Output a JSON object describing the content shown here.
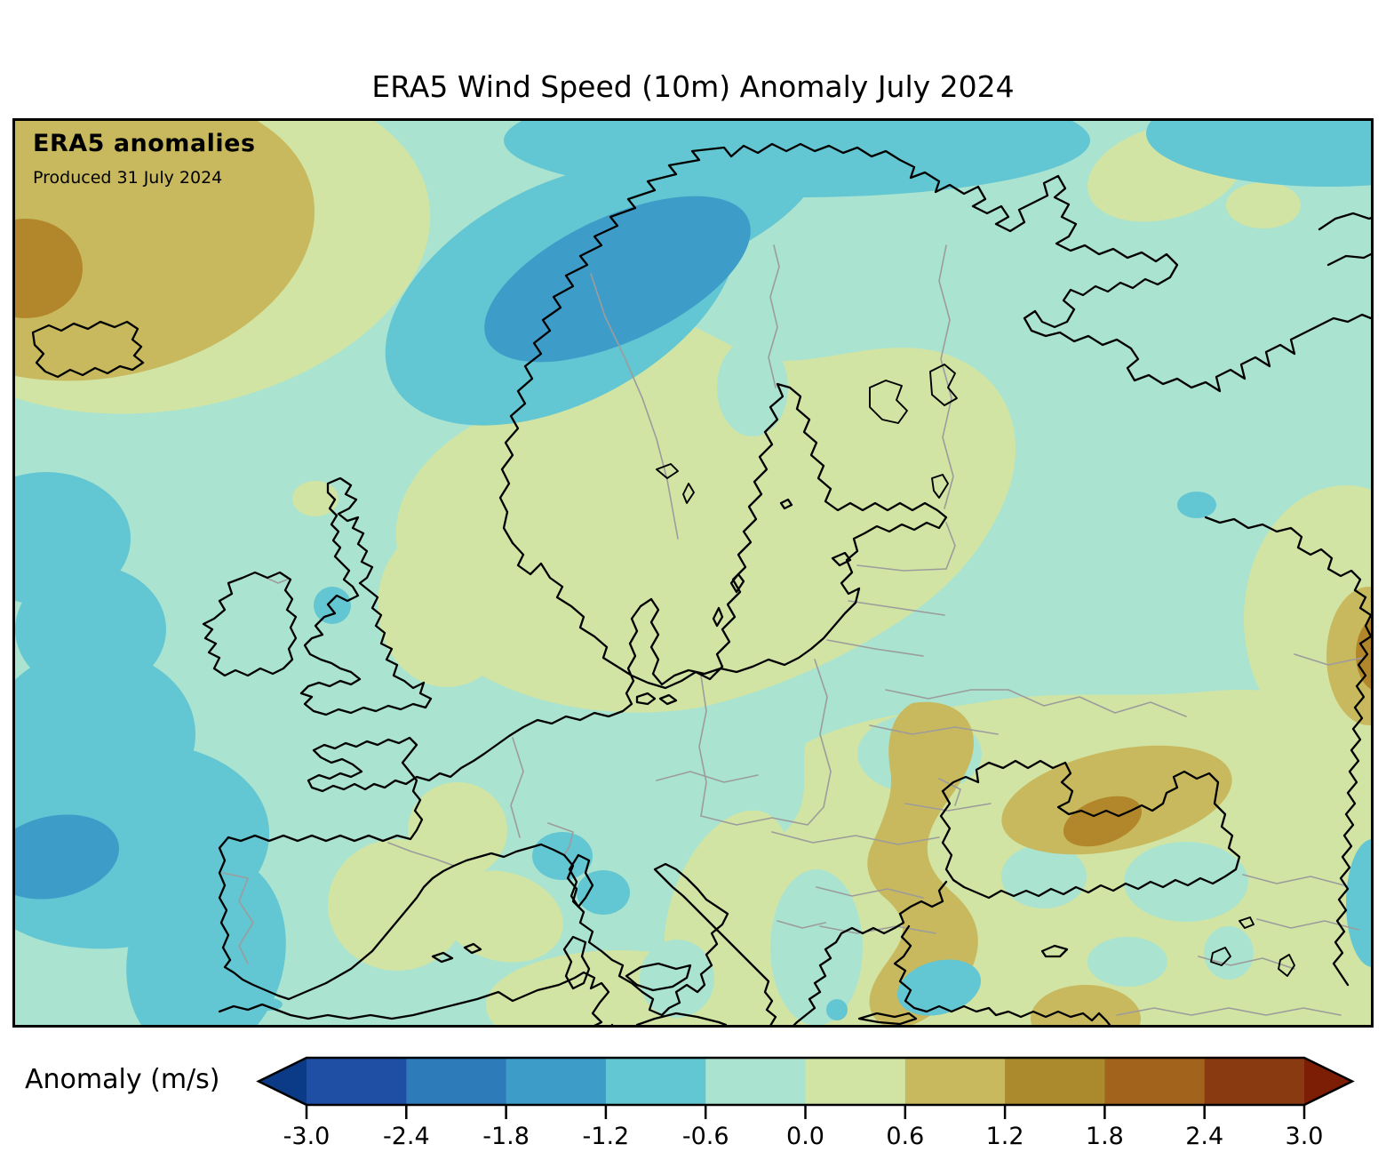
{
  "title": "ERA5 Wind Speed (10m) Anomaly July 2024",
  "map": {
    "heading": "ERA5 anomalies",
    "produced": "Produced 31 July 2024"
  },
  "colorbar": {
    "label": "Anomaly (m/s)",
    "ticks": [
      "-3.0",
      "-2.4",
      "-1.8",
      "-1.2",
      "-0.6",
      "0.0",
      "0.6",
      "1.2",
      "1.8",
      "2.4",
      "3.0"
    ],
    "under_color": "#0b3a86",
    "over_color": "#7c1d06",
    "levels": [
      {
        "range": "-3.0 to -2.4",
        "color": "#1e4fa5"
      },
      {
        "range": "-2.4 to -1.8",
        "color": "#2e7bb9"
      },
      {
        "range": "-1.8 to -1.2",
        "color": "#3e9dc8"
      },
      {
        "range": "-1.2 to -0.6",
        "color": "#63c6d3"
      },
      {
        "range": "-0.6 to 0.0",
        "color": "#aae3cf"
      },
      {
        "range": "0.0 to 0.6",
        "color": "#d1e4a4"
      },
      {
        "range": "0.6 to 1.2",
        "color": "#c9b95e"
      },
      {
        "range": "1.2 to 1.8",
        "color": "#ab8a2e"
      },
      {
        "range": "1.8 to 2.4",
        "color": "#a2641c"
      },
      {
        "range": "2.4 to 3.0",
        "color": "#8a3a10"
      }
    ]
  },
  "palette": {
    "background": "#ffffff",
    "mint": "#aae3cf",
    "green": "#d1e4a4",
    "khaki": "#c9b95e",
    "gold": "#b2872c",
    "lblue": "#63c6d3",
    "mblue": "#3e9dc8",
    "coast": "#000000",
    "border": "#9c9c9c",
    "frame": "#000000"
  }
}
